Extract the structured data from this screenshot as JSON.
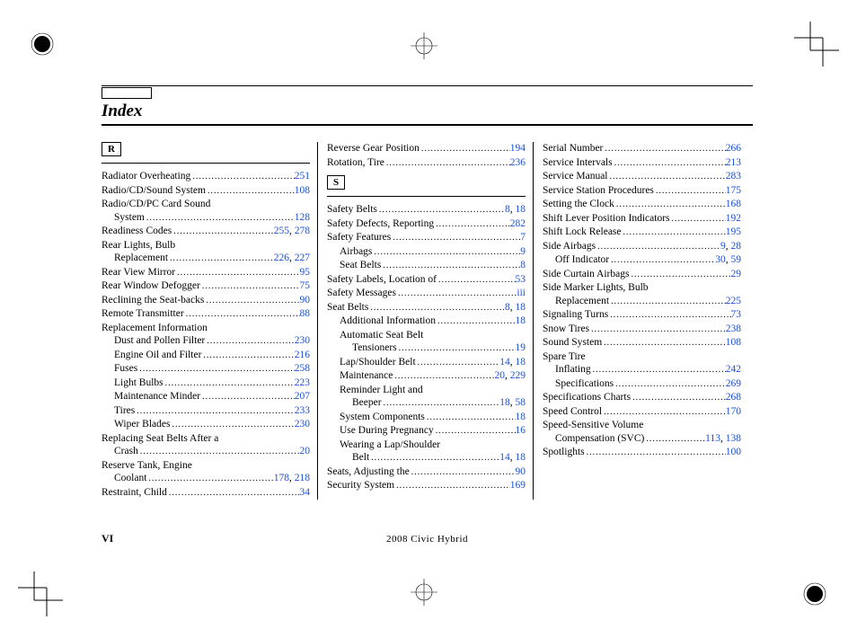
{
  "page": {
    "title": "Index",
    "footer_page": "VI",
    "footer_center": "2008  Civic  Hybrid"
  },
  "colors": {
    "link": "#1a4fd6",
    "text": "#000000"
  },
  "columns": [
    {
      "sections": [
        {
          "letter": "R",
          "entries": [
            {
              "label": "Radiator Overheating",
              "pages": [
                "251"
              ]
            },
            {
              "label": "Radio/CD/Sound System",
              "pages": [
                "108"
              ]
            },
            {
              "label": "Radio/CD/PC Card Sound",
              "cont": true
            },
            {
              "label": "System",
              "indent": 1,
              "pages": [
                "128"
              ]
            },
            {
              "label": "Readiness Codes",
              "pages": [
                "255",
                "278"
              ]
            },
            {
              "label": "Rear Lights, Bulb",
              "cont": true
            },
            {
              "label": "Replacement",
              "indent": 1,
              "pages": [
                "226",
                "227"
              ]
            },
            {
              "label": "Rear View Mirror",
              "pages": [
                "95"
              ]
            },
            {
              "label": "Rear Window Defogger",
              "pages": [
                "75"
              ]
            },
            {
              "label": "Reclining the Seat-backs",
              "pages": [
                "90"
              ]
            },
            {
              "label": "Remote Transmitter",
              "pages": [
                "88"
              ]
            },
            {
              "label": "Replacement Information",
              "cont": true
            },
            {
              "label": "Dust and Pollen Filter",
              "indent": 1,
              "pages": [
                "230"
              ]
            },
            {
              "label": "Engine Oil and Filter",
              "indent": 1,
              "pages": [
                "216"
              ]
            },
            {
              "label": "Fuses",
              "indent": 1,
              "pages": [
                "258"
              ]
            },
            {
              "label": "Light Bulbs",
              "indent": 1,
              "pages": [
                "223"
              ]
            },
            {
              "label": "Maintenance Minder",
              "indent": 1,
              "pages": [
                "207"
              ]
            },
            {
              "label": "Tires",
              "indent": 1,
              "pages": [
                "233"
              ]
            },
            {
              "label": "Wiper Blades",
              "indent": 1,
              "pages": [
                "230"
              ]
            },
            {
              "label": "Replacing Seat Belts After a",
              "cont": true
            },
            {
              "label": "Crash",
              "indent": 1,
              "pages": [
                "20"
              ]
            },
            {
              "label": "Reserve Tank, Engine",
              "cont": true
            },
            {
              "label": "Coolant",
              "indent": 1,
              "pages": [
                "178",
                "218"
              ]
            },
            {
              "label": "Restraint, Child",
              "pages": [
                "34"
              ]
            }
          ]
        }
      ]
    },
    {
      "sections": [
        {
          "entries": [
            {
              "label": "Reverse Gear Position",
              "pages": [
                "194"
              ]
            },
            {
              "label": "Rotation, Tire",
              "pages": [
                "236"
              ]
            }
          ]
        },
        {
          "letter": "S",
          "entries": [
            {
              "label": "Safety Belts",
              "pages": [
                "8",
                "18"
              ]
            },
            {
              "label": "Safety Defects, Reporting",
              "pages": [
                "282"
              ]
            },
            {
              "label": "Safety Features",
              "pages": [
                "7"
              ]
            },
            {
              "label": "Airbags",
              "indent": 1,
              "pages": [
                "9"
              ]
            },
            {
              "label": "Seat Belts",
              "indent": 1,
              "pages": [
                "8"
              ]
            },
            {
              "label": "Safety Labels, Location of",
              "pages": [
                "53"
              ]
            },
            {
              "label": "Safety Messages",
              "pages": [
                "iii"
              ]
            },
            {
              "label": "Seat Belts",
              "pages": [
                "8",
                "18"
              ]
            },
            {
              "label": "Additional Information",
              "indent": 1,
              "pages": [
                "18"
              ]
            },
            {
              "label": "Automatic Seat Belt",
              "indent": 1,
              "cont": true
            },
            {
              "label": "Tensioners",
              "indent": 2,
              "pages": [
                "19"
              ]
            },
            {
              "label": "Lap/Shoulder Belt",
              "indent": 1,
              "pages": [
                "14",
                "18"
              ]
            },
            {
              "label": "Maintenance",
              "indent": 1,
              "pages": [
                "20",
                "229"
              ]
            },
            {
              "label": "Reminder Light and",
              "indent": 1,
              "cont": true
            },
            {
              "label": "Beeper",
              "indent": 2,
              "pages": [
                "18",
                "58"
              ]
            },
            {
              "label": "System Components",
              "indent": 1,
              "pages": [
                "18"
              ]
            },
            {
              "label": "Use During Pregnancy",
              "indent": 1,
              "pages": [
                "16"
              ]
            },
            {
              "label": "Wearing a Lap/Shoulder",
              "indent": 1,
              "cont": true
            },
            {
              "label": "Belt",
              "indent": 2,
              "pages": [
                "14",
                "18"
              ]
            },
            {
              "label": "Seats, Adjusting the",
              "pages": [
                "90"
              ]
            },
            {
              "label": "Security System",
              "pages": [
                "169"
              ]
            }
          ]
        }
      ]
    },
    {
      "sections": [
        {
          "entries": [
            {
              "label": "Serial Number",
              "pages": [
                "266"
              ]
            },
            {
              "label": "Service Intervals",
              "pages": [
                "213"
              ]
            },
            {
              "label": "Service Manual",
              "pages": [
                "283"
              ]
            },
            {
              "label": "Service Station Procedures",
              "pages": [
                "175"
              ]
            },
            {
              "label": "Setting the Clock",
              "pages": [
                "168"
              ]
            },
            {
              "label": "Shift Lever Position Indicators",
              "pages": [
                "192"
              ]
            },
            {
              "label": "Shift Lock Release",
              "pages": [
                "195"
              ]
            },
            {
              "label": "Side Airbags",
              "pages": [
                "9",
                "28"
              ]
            },
            {
              "label": "Off Indicator",
              "indent": 1,
              "pages": [
                "30",
                "59"
              ]
            },
            {
              "label": "Side Curtain Airbags",
              "pages": [
                "29"
              ]
            },
            {
              "label": "Side Marker Lights, Bulb",
              "cont": true
            },
            {
              "label": "Replacement",
              "indent": 1,
              "pages": [
                "225"
              ]
            },
            {
              "label": "Signaling Turns",
              "pages": [
                "73"
              ]
            },
            {
              "label": "Snow Tires",
              "pages": [
                "238"
              ]
            },
            {
              "label": "Sound System",
              "pages": [
                "108"
              ]
            },
            {
              "label": "Spare Tire",
              "cont": true
            },
            {
              "label": "Inflating",
              "indent": 1,
              "pages": [
                "242"
              ]
            },
            {
              "label": "Specifications",
              "indent": 1,
              "pages": [
                "269"
              ]
            },
            {
              "label": "Specifications Charts",
              "pages": [
                "268"
              ]
            },
            {
              "label": "Speed Control",
              "pages": [
                "170"
              ]
            },
            {
              "label": "Speed-Sensitive Volume",
              "cont": true
            },
            {
              "label": "Compensation (SVC)",
              "indent": 1,
              "pages": [
                "113",
                "138"
              ]
            },
            {
              "label": "Spotlights",
              "pages": [
                "100"
              ]
            }
          ]
        }
      ]
    }
  ]
}
